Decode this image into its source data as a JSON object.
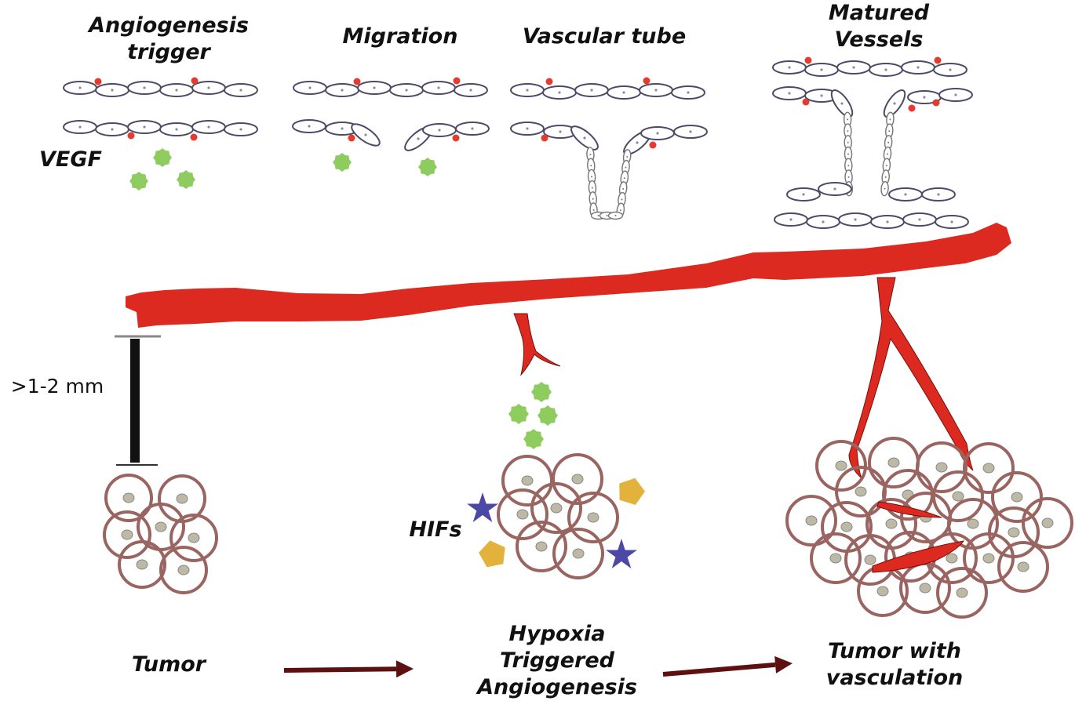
{
  "stages": {
    "trigger": "Angiogenesis\ntrigger",
    "migration": "Migration",
    "tube": "Vascular tube",
    "matured": "Matured\nVessels"
  },
  "labels": {
    "vegf": "VEGF",
    "hifs": "HIFs",
    "distance": ">1-2 mm"
  },
  "flow": {
    "step1": "Tumor",
    "step2": "Hypoxia\nTriggered\nAngiogenesis",
    "step3": "Tumor with\nvasculation"
  },
  "colors": {
    "vessel": "#dc2a20",
    "endothelial": "#4c4a66",
    "pericyte": "#e53b2e",
    "vegf": "#8fcc5f",
    "tumor_cell": "#9a6461",
    "nucleus": "#bdb9a4",
    "hif_star": "#4b48a6",
    "pentagon": "#e3b23c",
    "arrow": "#5e0f10"
  }
}
